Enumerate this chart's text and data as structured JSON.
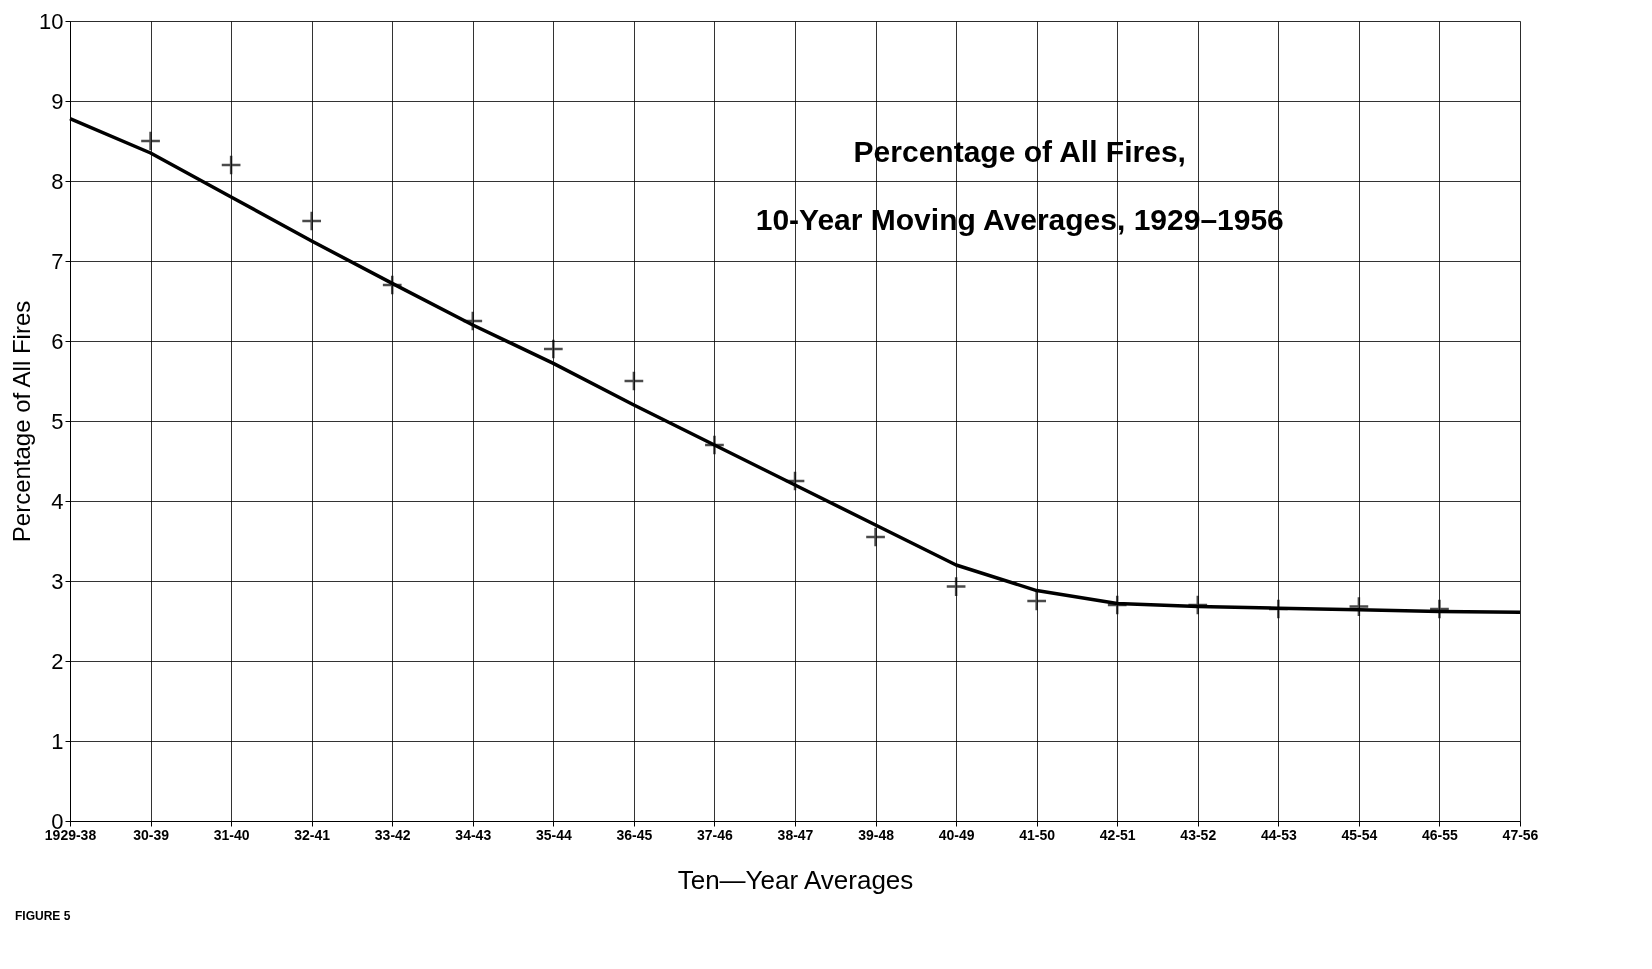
{
  "chart_data": {
    "type": "scatter",
    "title": [
      "Percentage of All Fires,",
      "10-Year Moving Averages, 1929–1956"
    ],
    "xlabel": "Ten—Year Averages",
    "ylabel": "Percentage of All Fires",
    "categories": [
      "1929-38",
      "30-39",
      "31-40",
      "32-41",
      "33-42",
      "34-43",
      "35-44",
      "36-45",
      "37-46",
      "38-47",
      "39-48",
      "40-49",
      "41-50",
      "42-51",
      "43-52",
      "44-53",
      "45-54",
      "46-55",
      "47-56"
    ],
    "series": [
      {
        "type": "line",
        "color": "#000000",
        "marker": "none",
        "line_style": "solid",
        "values": [
          8.78,
          8.35,
          7.8,
          7.25,
          6.72,
          6.2,
          5.72,
          5.2,
          4.7,
          4.2,
          3.7,
          3.2,
          2.88,
          2.72,
          2.68,
          2.66,
          2.64,
          2.62,
          2.61
        ]
      },
      {
        "type": "scatter",
        "color": "#000000",
        "marker": "cross",
        "values": [
          null,
          8.5,
          8.2,
          7.5,
          6.7,
          6.25,
          5.9,
          5.5,
          4.7,
          4.25,
          3.55,
          2.93,
          2.75,
          2.7,
          2.7,
          2.65,
          2.68,
          2.65,
          null
        ]
      }
    ],
    "ylim": [
      0,
      10
    ],
    "yticks": [
      0,
      1,
      2,
      3,
      4,
      5,
      6,
      7,
      8,
      9,
      10
    ],
    "grid": true,
    "annotations": [
      "FIGURE 5"
    ]
  }
}
